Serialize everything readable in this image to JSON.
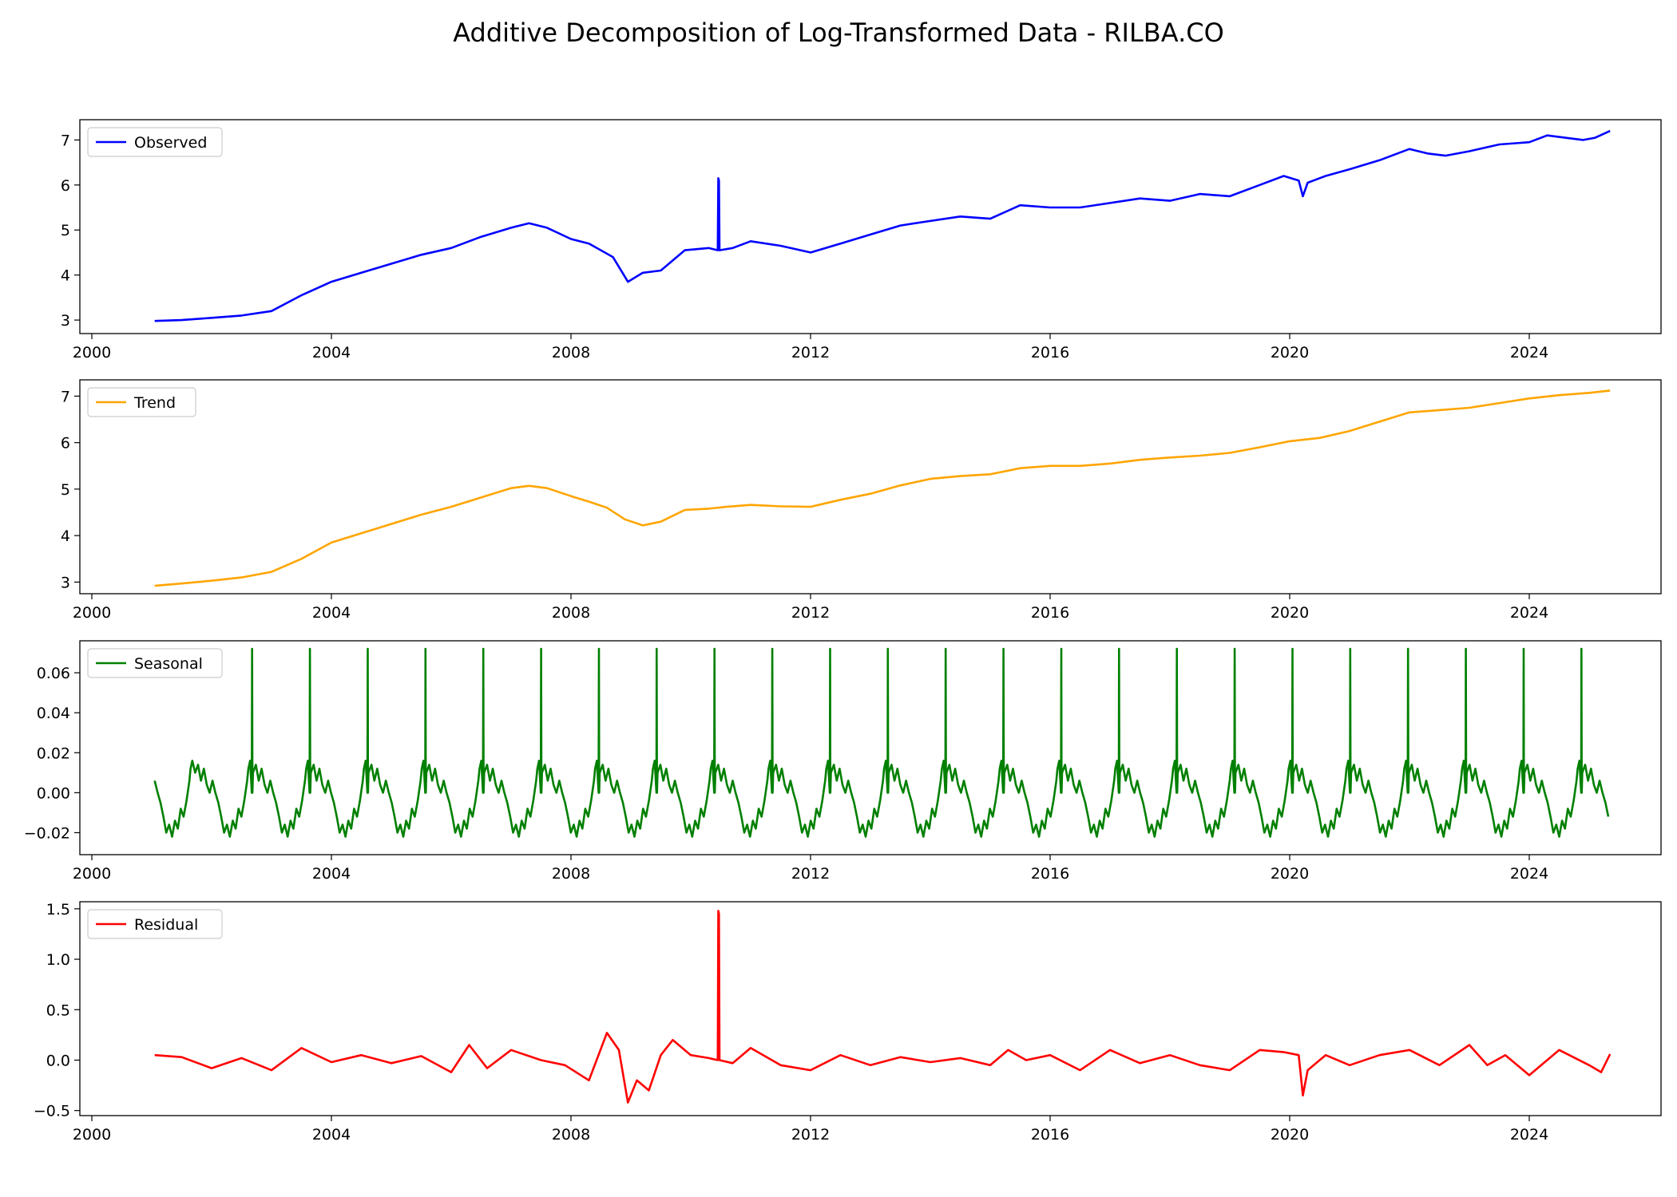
{
  "figure_title": "Additive Decomposition of Log-Transformed Data - RILBA.CO",
  "colors": {
    "observed": "#0000ff",
    "trend": "#ffa500",
    "seasonal": "#008000",
    "residual": "#ff0000"
  },
  "chart_data": [
    {
      "type": "line",
      "legend_placement": "upper-left",
      "grid": false,
      "series": [
        {
          "name": "Observed",
          "color": "#0000ff",
          "x": [
            2001.05,
            2001.5,
            2002.0,
            2002.5,
            2003.0,
            2003.5,
            2004.0,
            2004.5,
            2005.0,
            2005.5,
            2006.0,
            2006.5,
            2007.0,
            2007.3,
            2007.6,
            2008.0,
            2008.3,
            2008.7,
            2008.95,
            2009.2,
            2009.5,
            2009.9,
            2010.3,
            2010.45,
            2010.46,
            2010.47,
            2010.48,
            2010.7,
            2011.0,
            2011.5,
            2012.0,
            2012.5,
            2013.0,
            2013.5,
            2014.0,
            2014.5,
            2015.0,
            2015.5,
            2016.0,
            2016.5,
            2017.0,
            2017.5,
            2018.0,
            2018.5,
            2019.0,
            2019.5,
            2019.9,
            2020.15,
            2020.22,
            2020.3,
            2020.6,
            2021.0,
            2021.5,
            2022.0,
            2022.3,
            2022.6,
            2023.0,
            2023.5,
            2024.0,
            2024.3,
            2024.6,
            2024.9,
            2025.1,
            2025.35
          ],
          "y": [
            2.98,
            3.0,
            3.05,
            3.1,
            3.2,
            3.55,
            3.85,
            4.05,
            4.25,
            4.45,
            4.6,
            4.85,
            5.05,
            5.15,
            5.05,
            4.8,
            4.7,
            4.4,
            3.85,
            4.05,
            4.1,
            4.55,
            4.6,
            4.55,
            6.15,
            6.1,
            4.55,
            4.6,
            4.75,
            4.65,
            4.5,
            4.7,
            4.9,
            5.1,
            5.2,
            5.3,
            5.25,
            5.55,
            5.5,
            5.5,
            5.6,
            5.7,
            5.65,
            5.8,
            5.75,
            6.0,
            6.2,
            6.1,
            5.75,
            6.05,
            6.2,
            6.35,
            6.55,
            6.8,
            6.7,
            6.65,
            6.75,
            6.9,
            6.95,
            7.1,
            7.05,
            7.0,
            7.05,
            7.2
          ]
        }
      ],
      "xlim": [
        1999.8,
        2026.2
      ],
      "ylim": [
        2.7,
        7.45
      ],
      "xticks": [
        2000,
        2004,
        2008,
        2012,
        2016,
        2020,
        2024
      ],
      "yticks": [
        3,
        4,
        5,
        6,
        7
      ]
    },
    {
      "type": "line",
      "legend_placement": "upper-left",
      "grid": false,
      "series": [
        {
          "name": "Trend",
          "color": "#ffa500",
          "x": [
            2001.05,
            2001.5,
            2002.0,
            2002.5,
            2003.0,
            2003.5,
            2004.0,
            2004.5,
            2005.0,
            2005.5,
            2006.0,
            2006.5,
            2007.0,
            2007.3,
            2007.6,
            2008.0,
            2008.3,
            2008.6,
            2008.9,
            2009.2,
            2009.5,
            2009.9,
            2010.3,
            2010.6,
            2011.0,
            2011.5,
            2012.0,
            2012.5,
            2013.0,
            2013.5,
            2014.0,
            2014.5,
            2015.0,
            2015.5,
            2016.0,
            2016.5,
            2017.0,
            2017.5,
            2018.0,
            2018.5,
            2019.0,
            2019.5,
            2020.0,
            2020.5,
            2021.0,
            2021.5,
            2022.0,
            2022.5,
            2023.0,
            2023.5,
            2024.0,
            2024.5,
            2025.0,
            2025.35
          ],
          "y": [
            2.92,
            2.97,
            3.03,
            3.1,
            3.22,
            3.5,
            3.85,
            4.05,
            4.25,
            4.45,
            4.62,
            4.82,
            5.02,
            5.07,
            5.02,
            4.85,
            4.73,
            4.6,
            4.35,
            4.22,
            4.3,
            4.55,
            4.58,
            4.62,
            4.66,
            4.63,
            4.62,
            4.77,
            4.9,
            5.08,
            5.22,
            5.28,
            5.32,
            5.45,
            5.5,
            5.5,
            5.55,
            5.63,
            5.68,
            5.72,
            5.78,
            5.9,
            6.03,
            6.1,
            6.25,
            6.45,
            6.65,
            6.7,
            6.75,
            6.85,
            6.95,
            7.02,
            7.07,
            7.12
          ]
        }
      ],
      "xlim": [
        1999.8,
        2026.2
      ],
      "ylim": [
        2.75,
        7.35
      ],
      "xticks": [
        2000,
        2004,
        2008,
        2012,
        2016,
        2020,
        2024
      ],
      "yticks": [
        3,
        4,
        5,
        6,
        7
      ]
    },
    {
      "type": "line",
      "legend_placement": "upper-left",
      "grid": false,
      "period_years": 0.965,
      "start_x": 2001.05,
      "end_x": 2025.35,
      "spike_value": 0.072,
      "series": [
        {
          "name": "Seasonal",
          "color": "#008000",
          "phase": [
            0.0,
            0.05,
            0.1,
            0.15,
            0.2,
            0.25,
            0.3,
            0.35,
            0.4,
            0.45,
            0.5,
            0.55,
            0.6,
            0.62,
            0.65,
            0.7,
            0.75,
            0.8,
            0.85,
            0.9,
            0.95,
            1.0
          ],
          "y": [
            0.006,
            0.0,
            -0.005,
            -0.012,
            -0.02,
            -0.016,
            -0.022,
            -0.014,
            -0.018,
            -0.008,
            -0.012,
            -0.004,
            0.006,
            0.012,
            0.016,
            0.01,
            0.014,
            0.006,
            0.012,
            0.004,
            0.0,
            0.006
          ]
        }
      ],
      "xlim": [
        1999.8,
        2026.2
      ],
      "ylim": [
        -0.031,
        0.076
      ],
      "xticks": [
        2000,
        2004,
        2008,
        2012,
        2016,
        2020,
        2024
      ],
      "yticks": [
        -0.02,
        0.0,
        0.02,
        0.04,
        0.06
      ]
    },
    {
      "type": "line",
      "legend_placement": "upper-left",
      "grid": false,
      "series": [
        {
          "name": "Residual",
          "color": "#ff0000",
          "x": [
            2001.05,
            2001.5,
            2002.0,
            2002.5,
            2003.0,
            2003.5,
            2004.0,
            2004.5,
            2005.0,
            2005.5,
            2006.0,
            2006.3,
            2006.6,
            2007.0,
            2007.5,
            2007.9,
            2008.3,
            2008.6,
            2008.8,
            2008.95,
            2009.1,
            2009.3,
            2009.5,
            2009.7,
            2010.0,
            2010.3,
            2010.45,
            2010.46,
            2010.47,
            2010.48,
            2010.7,
            2011.0,
            2011.5,
            2012.0,
            2012.5,
            2013.0,
            2013.5,
            2014.0,
            2014.5,
            2015.0,
            2015.3,
            2015.6,
            2016.0,
            2016.5,
            2017.0,
            2017.5,
            2018.0,
            2018.5,
            2019.0,
            2019.5,
            2019.9,
            2020.15,
            2020.22,
            2020.3,
            2020.6,
            2021.0,
            2021.5,
            2022.0,
            2022.5,
            2023.0,
            2023.3,
            2023.6,
            2024.0,
            2024.5,
            2025.0,
            2025.2,
            2025.35
          ],
          "y": [
            0.05,
            0.03,
            -0.08,
            0.02,
            -0.1,
            0.12,
            -0.02,
            0.05,
            -0.03,
            0.04,
            -0.12,
            0.15,
            -0.08,
            0.1,
            0.0,
            -0.05,
            -0.2,
            0.27,
            0.1,
            -0.42,
            -0.2,
            -0.3,
            0.05,
            0.2,
            0.05,
            0.02,
            0.0,
            1.48,
            1.45,
            0.0,
            -0.03,
            0.12,
            -0.05,
            -0.1,
            0.05,
            -0.05,
            0.03,
            -0.02,
            0.02,
            -0.05,
            0.1,
            0.0,
            0.05,
            -0.1,
            0.1,
            -0.03,
            0.05,
            -0.05,
            -0.1,
            0.1,
            0.08,
            0.05,
            -0.35,
            -0.1,
            0.05,
            -0.05,
            0.05,
            0.1,
            -0.05,
            0.15,
            -0.05,
            0.05,
            -0.15,
            0.1,
            -0.05,
            -0.12,
            0.06
          ]
        }
      ],
      "xlim": [
        1999.8,
        2026.2
      ],
      "ylim": [
        -0.55,
        1.57
      ],
      "xticks": [
        2000,
        2004,
        2008,
        2012,
        2016,
        2020,
        2024
      ],
      "yticks": [
        -0.5,
        0.0,
        0.5,
        1.0,
        1.5
      ]
    }
  ]
}
